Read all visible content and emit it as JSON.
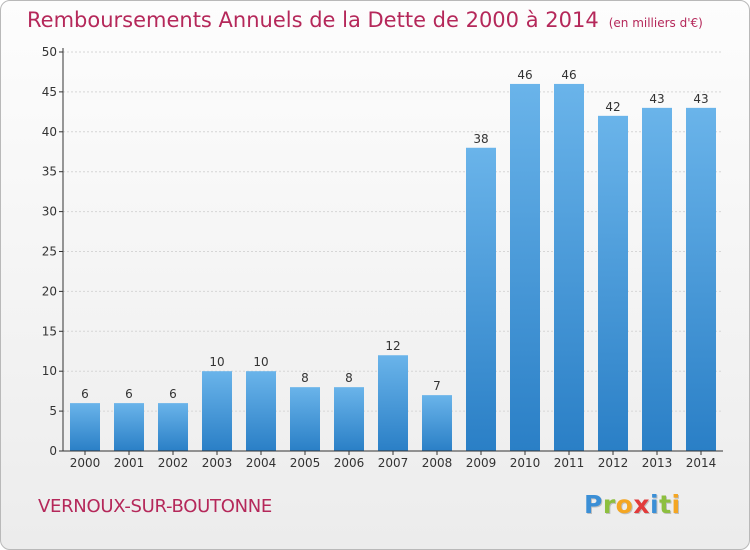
{
  "title": {
    "main": "Remboursements Annuels de la Dette de 2000 à 2014",
    "unit": "(en milliers d'€)"
  },
  "commune": "VERNOUX-SUR-BOUTONNE",
  "logo": {
    "text": "Proxiti",
    "letters": [
      "P",
      "r",
      "o",
      "x",
      "i",
      "t",
      "i"
    ],
    "colors": [
      "#3b8fd6",
      "#8dbf3f",
      "#f4a623",
      "#e23b3b",
      "#3b8fd6",
      "#8dbf3f",
      "#f4a623"
    ]
  },
  "colors": {
    "title": "#b5285a",
    "bar_top": "#6ab4ea",
    "bar_bottom": "#2a7fc6",
    "axis": "#333333",
    "grid": "#d6d6d6"
  },
  "chart_data": {
    "type": "bar",
    "title": "Remboursements Annuels de la Dette de 2000 à 2014",
    "subtitle": "(en milliers d'€)",
    "xlabel": "",
    "ylabel": "",
    "ylim": [
      0,
      50
    ],
    "yticks": [
      0,
      5,
      10,
      15,
      20,
      25,
      30,
      35,
      40,
      45,
      50
    ],
    "grid": true,
    "categories": [
      "2000",
      "2001",
      "2002",
      "2003",
      "2004",
      "2005",
      "2006",
      "2007",
      "2008",
      "2009",
      "2010",
      "2011",
      "2012",
      "2013",
      "2014"
    ],
    "values": [
      6,
      6,
      6,
      10,
      10,
      8,
      8,
      12,
      7,
      38,
      46,
      46,
      42,
      43,
      43
    ]
  }
}
